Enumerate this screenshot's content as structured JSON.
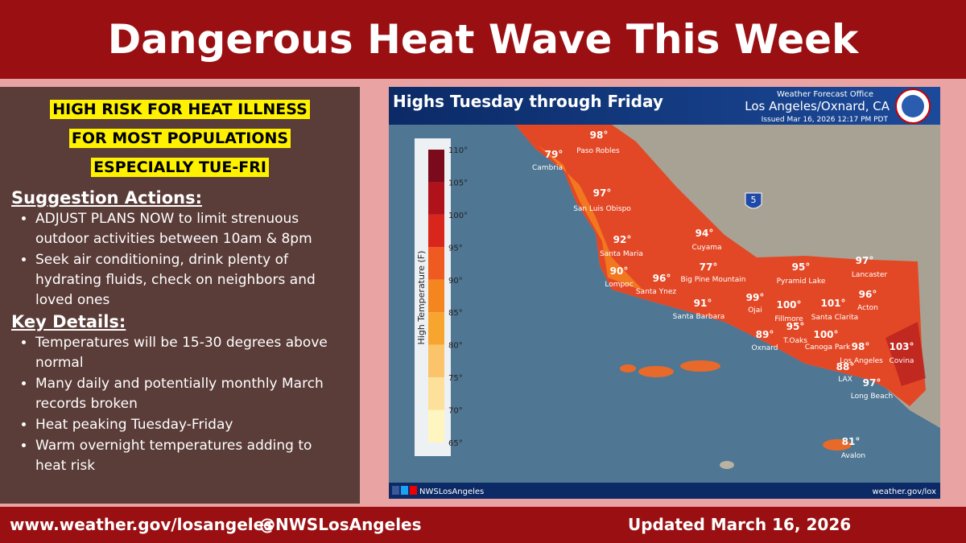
{
  "header": {
    "title": "Dangerous Heat Wave This Week"
  },
  "panel": {
    "highlight": [
      "HIGH RISK FOR HEAT ILLNESS",
      "FOR MOST POPULATIONS",
      "ESPECIALLY TUE-FRI"
    ],
    "sections": [
      {
        "heading": "Suggestion Actions:",
        "bullets": [
          "ADJUST PLANS NOW to limit strenuous outdoor activities between 10am & 8pm",
          "Seek air conditioning, drink plenty of hydrating fluids, check on neighbors and loved ones"
        ]
      },
      {
        "heading": "Key Details:",
        "bullets": [
          "Temperatures will be 15-30 degrees above normal",
          "Many daily and potentially monthly March records broken",
          "Heat peaking Tuesday-Friday",
          "Warm overnight temperatures adding to heat risk"
        ]
      }
    ]
  },
  "map": {
    "title": "Highs Tuesday through Friday",
    "office": "Weather Forecast Office",
    "office_name": "Los Angeles/Oxnard, CA",
    "issued": "Issued Mar 16, 2026 12:17 PM PDT",
    "legend_title": "High Temperature (F)",
    "legend_ticks": [
      "110°",
      "105°",
      "100°",
      "95°",
      "90°",
      "85°",
      "80°",
      "75°",
      "70°",
      "65°"
    ],
    "highway": "5",
    "cities": [
      {
        "name": "Paso Robles",
        "temp": "98°"
      },
      {
        "name": "Cambria",
        "temp": "79°"
      },
      {
        "name": "San Luis Obispo",
        "temp": "97°"
      },
      {
        "name": "Santa Maria",
        "temp": "92°"
      },
      {
        "name": "Cuyama",
        "temp": "94°"
      },
      {
        "name": "Lompoc",
        "temp": "90°"
      },
      {
        "name": "Santa Ynez",
        "temp": "96°"
      },
      {
        "name": "Big Pine Mountain",
        "temp": "77°"
      },
      {
        "name": "Santa Barbara",
        "temp": "91°"
      },
      {
        "name": "Ojai",
        "temp": "99°"
      },
      {
        "name": "Fillmore",
        "temp": "100°"
      },
      {
        "name": "Pyramid Lake",
        "temp": "95°"
      },
      {
        "name": "Santa Clarita",
        "temp": "101°"
      },
      {
        "name": "Lancaster",
        "temp": "97°"
      },
      {
        "name": "Acton",
        "temp": "96°"
      },
      {
        "name": "Oxnard",
        "temp": "89°"
      },
      {
        "name": "T.Oaks",
        "temp": "95°"
      },
      {
        "name": "Canoga Park",
        "temp": "100°"
      },
      {
        "name": "Los Angeles",
        "temp": "98°"
      },
      {
        "name": "Covina",
        "temp": "103°"
      },
      {
        "name": "LAX",
        "temp": "88°"
      },
      {
        "name": "Long Beach",
        "temp": "97°"
      },
      {
        "name": "Avalon",
        "temp": "81°"
      }
    ],
    "social": "NWSLosAngeles",
    "site": "weather.gov/lox"
  },
  "footer": {
    "website": "www.weather.gov/losangeles",
    "handle": "@NWSLosAngeles",
    "updated": "Updated March 16, 2026"
  }
}
